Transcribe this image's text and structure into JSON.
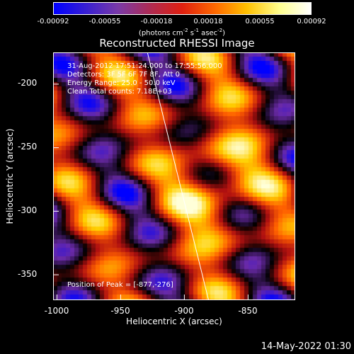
{
  "colorbar": {
    "ticks": [
      "-0.00092",
      "-0.00055",
      "-0.00018",
      "0.00018",
      "0.00055",
      "0.00092"
    ],
    "units_text": "(photons cm",
    "units_exp1": "-2",
    "units_mid1": " s",
    "units_exp2": "-1",
    "units_mid2": " asec",
    "units_exp3": "-2",
    "units_end": ")"
  },
  "info": {
    "time_range": "31-Aug-2012 17:51:24.000 to 17:55:56.000",
    "detectors": "Detectors: 3F 5F 6F 7F 8F, Att 0",
    "energy": "Energy Range: 25.0 - 50.0 keV",
    "clean": "Clean    Total counts: 7.18E+03",
    "peak": "Position of Peak = [-877,-276]"
  },
  "timestamp": "14-May-2022 01:30",
  "chart_data": {
    "type": "heatmap",
    "title": "Reconstructed RHESSI Image",
    "xlabel": "Heliocentric X (arcsec)",
    "ylabel": "Heliocentric Y (arcsec)",
    "xlim": [
      -1003,
      -813
    ],
    "ylim": [
      -370,
      -175
    ],
    "x_ticks": [
      "-1000",
      "-950",
      "-900",
      "-850"
    ],
    "x_tick_values": [
      -1000,
      -950,
      -900,
      -850
    ],
    "y_ticks": [
      "-200",
      "-250",
      "-300",
      "-350"
    ],
    "y_tick_values": [
      -200,
      -250,
      -300,
      -350
    ],
    "value_range": [
      -0.00092,
      0.00092
    ],
    "colormap": "blue-purple-red-yellow-white",
    "colors": [
      "#0000ff",
      "#6a2aa8",
      "#000000",
      "#b01010",
      "#ff6000",
      "#ffd000",
      "#ffffd8"
    ],
    "peak_position": [
      -877,
      -276
    ],
    "limb_line": [
      [
        -929,
        -175
      ],
      [
        -881,
        -370
      ]
    ]
  }
}
